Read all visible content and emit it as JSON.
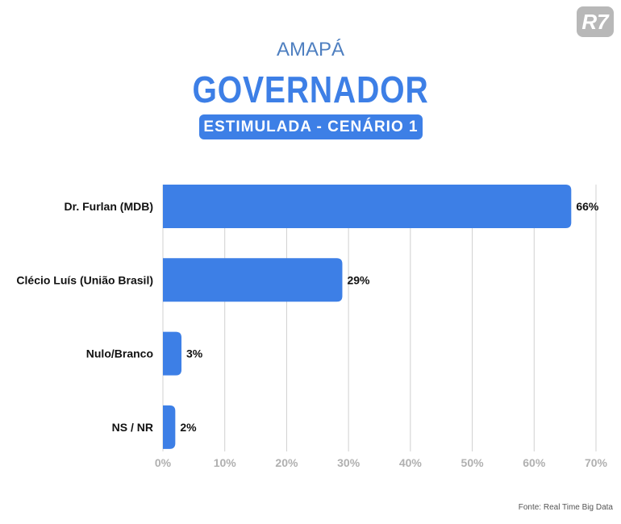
{
  "header": {
    "region": "AMAPÁ",
    "title": "GOVERNADOR",
    "badge": "ESTIMULADA - CENÁRIO 1",
    "logo": "R7"
  },
  "source": "Fonte: Real Time Big Data",
  "colors": {
    "bar": "#3d7fe6",
    "title": "#3d7fe6",
    "grid": "#d0d0d0"
  },
  "chart_data": {
    "type": "bar",
    "orientation": "horizontal",
    "categories": [
      "Dr. Furlan (MDB)",
      "Clécio Luís (União Brasil)",
      "Nulo/Branco",
      "NS / NR"
    ],
    "values": [
      66,
      29,
      3,
      2
    ],
    "value_labels": [
      "66%",
      "29%",
      "3%",
      "2%"
    ],
    "xlim": [
      0,
      70
    ],
    "ticks": [
      "0%",
      "10%",
      "20%",
      "30%",
      "40%",
      "50%",
      "60%",
      "70%"
    ],
    "grid": true,
    "title": "GOVERNADOR",
    "xlabel": "",
    "ylabel": ""
  }
}
